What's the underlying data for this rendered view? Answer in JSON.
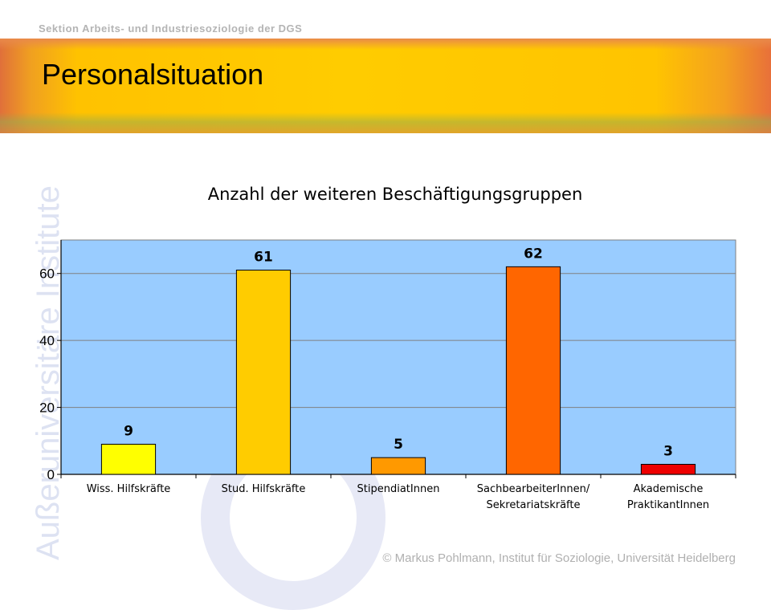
{
  "header": {
    "org": "Sektion Arbeits- und Industriesoziologie der DGS",
    "title": "Personalsituation",
    "vertical_label": "Außeruniversitäre Institute"
  },
  "footer": "© Markus Pohlmann, Institut für Soziologie, Universität Heidelberg",
  "chart_data": {
    "type": "bar",
    "title": "Anzahl der weiteren Beschäftigungsgruppen",
    "categories": [
      [
        "Wiss. Hilfskräfte"
      ],
      [
        "Stud. Hilfskräfte"
      ],
      [
        "StipendiatInnen"
      ],
      [
        "SachbearbeiterInnen/",
        "Sekretariatskräfte"
      ],
      [
        "Akademische",
        "PraktikantInnen"
      ]
    ],
    "values": [
      9,
      61,
      5,
      62,
      3
    ],
    "data_labels": [
      "9",
      "61",
      "5",
      "62",
      "3"
    ],
    "colors": [
      "#ffff00",
      "#ffcc00",
      "#ff9900",
      "#ff6600",
      "#ee0000"
    ],
    "ylim": [
      0,
      70
    ],
    "yticks": [
      0,
      20,
      40,
      60
    ],
    "plot_background": "#99ccff",
    "grid": true,
    "xlabel": "",
    "ylabel": ""
  }
}
